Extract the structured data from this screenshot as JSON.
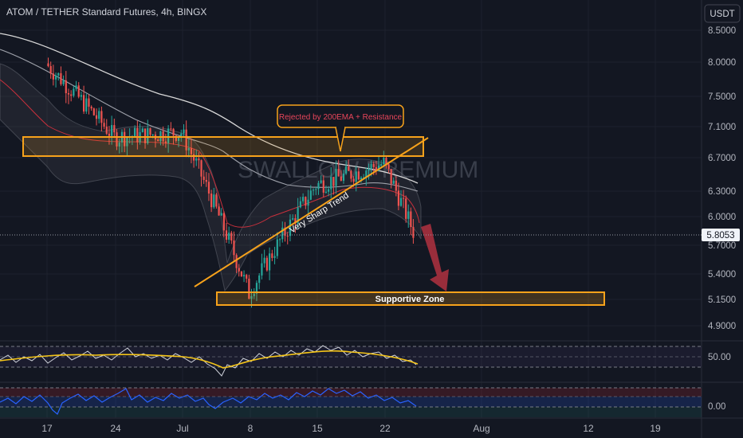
{
  "header": {
    "title": "ATOM / TETHER Standard Futures, 4h, BINGX",
    "currency_button": "USDT"
  },
  "watermark": "SWALLOW PREMIUM",
  "annotations": {
    "callout": "Rejected by 200EMA + Resistance",
    "trendline_label": "Very Sharp Trend",
    "support_label": "Supportive Zone"
  },
  "colors": {
    "background": "#131722",
    "up": "#26a69a",
    "down": "#ef5350",
    "zone": "#f7a21b",
    "ema": "#d9d9d9",
    "arrow": "#b2313f",
    "rsi_ma": "#f5c518",
    "osc": "#2962ff"
  },
  "chart_data": [
    {
      "type": "candlestick",
      "title": "ATOM / TETHER Standard Futures, 4h, BINGX",
      "x_ticks": [
        "17",
        "24",
        "Jul",
        "8",
        "15",
        "22",
        "Aug",
        "12",
        "19"
      ],
      "y_ticks": [
        8.5,
        8.0,
        7.5,
        7.1,
        6.7,
        6.3,
        6.0,
        5.7,
        5.4,
        5.15,
        4.9
      ],
      "y_scale": "log",
      "ylim": [
        4.78,
        8.75
      ],
      "last_price": "5.8053",
      "resistance_zone": [
        6.78,
        7.05
      ],
      "support_zone": [
        5.12,
        5.22
      ],
      "segments": [
        {
          "from": "17",
          "to": "24",
          "start": 7.82,
          "end": 6.86,
          "trend": "down"
        },
        {
          "from": "24",
          "to": "Jul",
          "start": 6.86,
          "end": 6.92,
          "trend": "sideways"
        },
        {
          "from": "Jul",
          "to": "8",
          "start": 6.92,
          "end": 5.2,
          "trend": "down"
        },
        {
          "from": "8",
          "to": "15",
          "start": 5.2,
          "end": 6.3,
          "trend": "up"
        },
        {
          "from": "15",
          "to": "22",
          "start": 6.3,
          "end": 6.55,
          "trend": "up"
        },
        {
          "from": "22",
          "to": "25",
          "start": 6.55,
          "end": 5.8053,
          "trend": "down"
        }
      ]
    },
    {
      "type": "line",
      "name": "RSI",
      "y_ticks": [
        50.0
      ],
      "ylim": [
        20,
        80
      ]
    },
    {
      "type": "line",
      "name": "Oscillator",
      "y_ticks": [
        0.0
      ],
      "ylim": [
        -1,
        1
      ]
    }
  ]
}
